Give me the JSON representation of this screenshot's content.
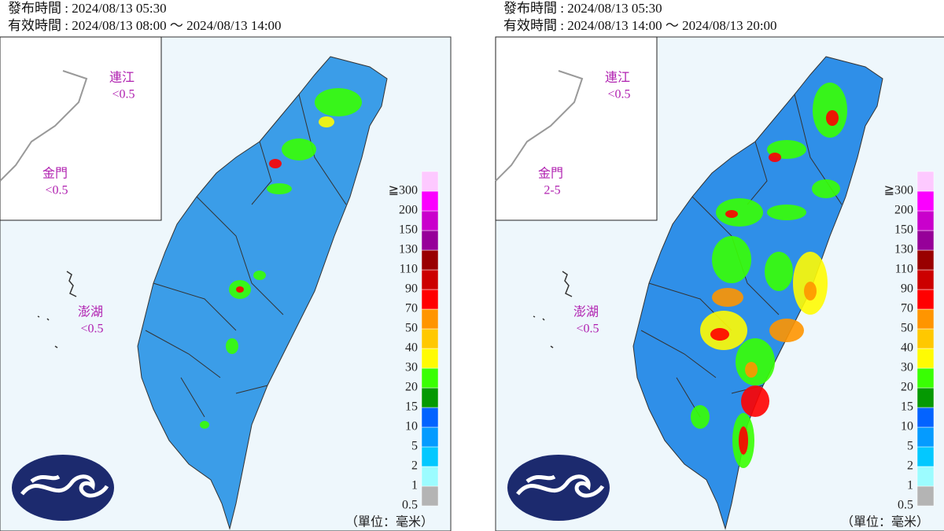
{
  "panels": [
    {
      "issued": "發布時間 : 2024/08/13 05:30",
      "valid": "有效時間 : 2024/08/13 08:00 ～ 2024/08/13 14:00",
      "insets": [
        {
          "name": "連江",
          "value": "<0.5"
        },
        {
          "name": "金門",
          "value": "<0.5"
        },
        {
          "name": "澎湖",
          "value": "<0.5"
        }
      ]
    },
    {
      "issued": "發布時間 : 2024/08/13 05:30",
      "valid": "有效時間 : 2024/08/13 14:00 ～ 2024/08/13 20:00",
      "insets": [
        {
          "name": "連江",
          "value": "<0.5"
        },
        {
          "name": "金門",
          "value": "2-5"
        },
        {
          "name": "澎湖",
          "value": "<0.5"
        }
      ]
    }
  ],
  "legend": {
    "levels": [
      "0.5",
      "1",
      "2",
      "5",
      "10",
      "15",
      "20",
      "30",
      "40",
      "50",
      "70",
      "90",
      "110",
      "130",
      "150",
      "200",
      "≧300"
    ],
    "colors": [
      "#b4b4b4",
      "#9cfcff",
      "#03c8ff",
      "#059bff",
      "#0363ff",
      "#059902",
      "#39ff03",
      "#fffb03",
      "#ffc800",
      "#ff9500",
      "#ff0000",
      "#cc0000",
      "#990000",
      "#960099",
      "#c900cc",
      "#fb00ff",
      "#fdc9ff"
    ],
    "unit": "（單位：毫米）"
  }
}
